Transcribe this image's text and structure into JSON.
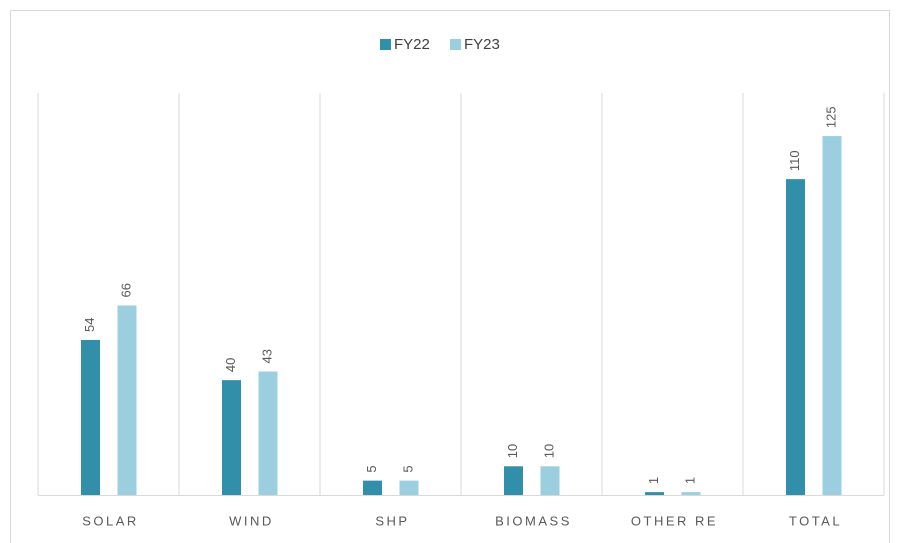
{
  "chart_data": {
    "type": "bar",
    "categories": [
      "SOLAR",
      "WIND",
      "SHP",
      "BIOMASS",
      "OTHER RE",
      "TOTAL"
    ],
    "series": [
      {
        "name": "FY22",
        "color": "#318fa9",
        "values": [
          54,
          40,
          5,
          10,
          1,
          110
        ]
      },
      {
        "name": "FY23",
        "color": "#9bcfdf",
        "values": [
          66,
          43,
          5,
          10,
          1,
          125
        ]
      }
    ],
    "ylim": [
      0,
      140
    ]
  }
}
